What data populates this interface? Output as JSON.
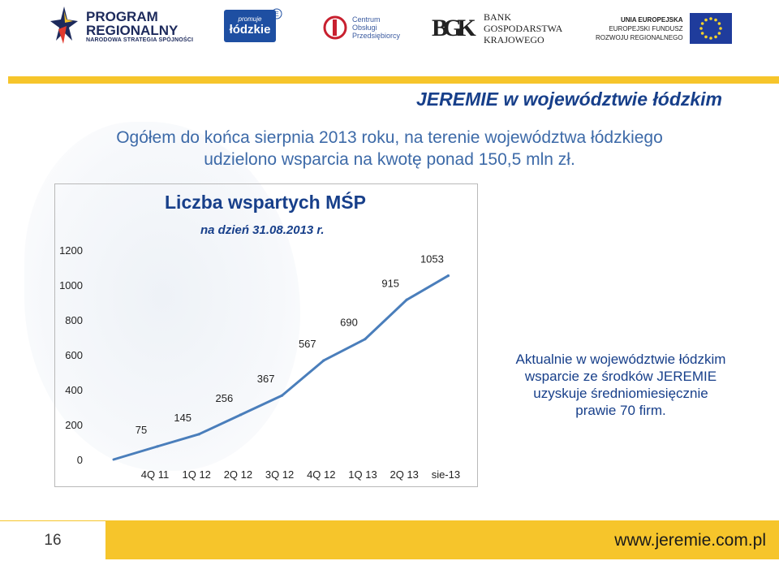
{
  "logos": {
    "program": {
      "line1": "PROGRAM",
      "line2": "REGIONALNY",
      "sub": "NARODOWA STRATEGIA SPÓJNOŚCI"
    },
    "lodzkie": {
      "small": "promuje",
      "big": "łódzkie"
    },
    "centrum": {
      "line1": "Centrum",
      "line2": "Obsługi",
      "line3": "Przedsiębiorcy"
    },
    "bank": {
      "monogram": "BGK",
      "line1": "BANK",
      "line2": "GOSPODARSTWA",
      "line3": "KRAJOWEGO"
    },
    "ue": {
      "line1": "UNIA EUROPEJSKA",
      "line2": "EUROPEJSKI FUNDUSZ",
      "line3": "ROZWOJU REGIONALNEGO"
    }
  },
  "slide": {
    "title": "JEREMIE w województwie łódzkim",
    "intro_line1": "Ogółem do końca sierpnia 2013 roku, na terenie województwa łódzkiego",
    "intro_line2": "udzielono wsparcia na kwotę ponad 150,5 mln zł.",
    "side_text_line1": "Aktualnie w województwie łódzkim",
    "side_text_line2": "wsparcie ze środków JEREMIE",
    "side_text_line3": "uzyskuje średniomiesięcznie",
    "side_text_line4": "prawie 70 firm.",
    "page_number": "16",
    "url": "www.jeremie.com.pl"
  },
  "chart_data": {
    "type": "line",
    "title": "Liczba wspartych MŚP",
    "subtitle": "na dzień 31.08.2013 r.",
    "categories": [
      "4Q 11",
      "1Q 12",
      "2Q 12",
      "3Q 12",
      "4Q 12",
      "1Q 13",
      "2Q 13",
      "sie-13"
    ],
    "x_start_value": 0,
    "series": [
      {
        "values": [
          75,
          145,
          256,
          367,
          567,
          690,
          915,
          1053
        ],
        "color": "#4a7ebb"
      }
    ],
    "data_labels": [
      "75",
      "145",
      "256",
      "367",
      "567",
      "690",
      "915",
      "1053"
    ],
    "y_ticks": [
      "0",
      "200",
      "400",
      "600",
      "800",
      "1000",
      "1200"
    ],
    "ylim": [
      0,
      1200
    ],
    "grid": false
  }
}
